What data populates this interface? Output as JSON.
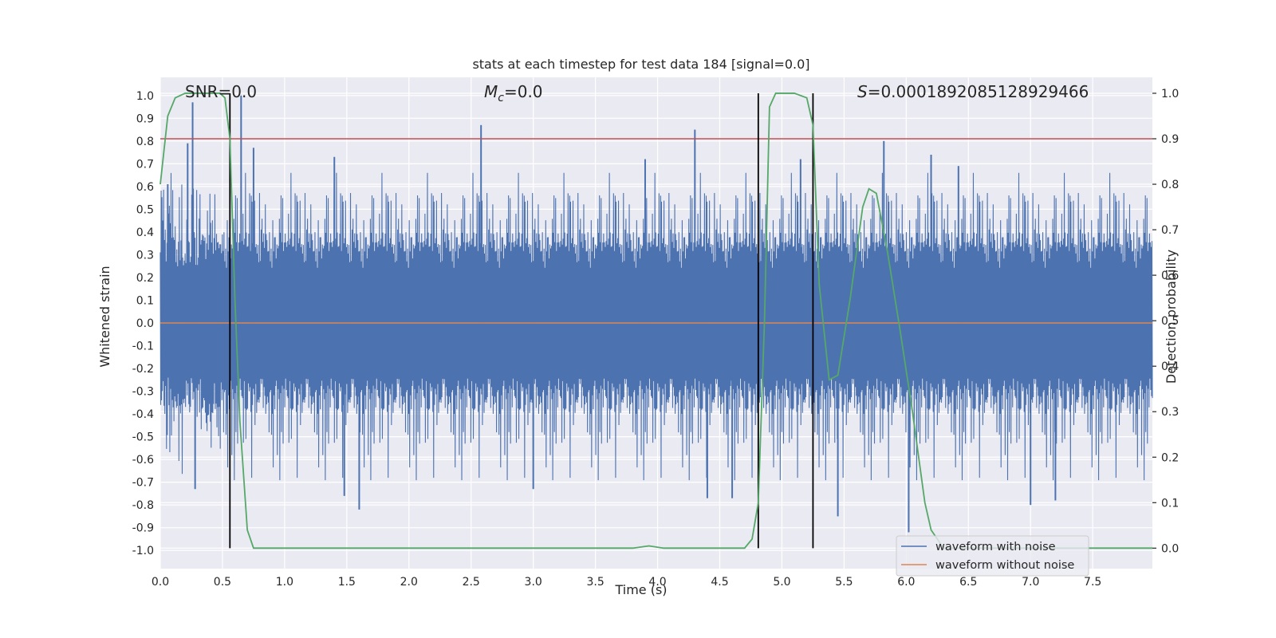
{
  "chart_data": {
    "type": "line",
    "title": "stats at each timestep for test data 184 [signal=0.0]",
    "xlabel": "Time (s)",
    "ylabel": "Whitened strain",
    "y2label": "Detection probability",
    "xlim": [
      0.0,
      7.98
    ],
    "ylim": [
      -1.08,
      1.08
    ],
    "y2lim": [
      -0.045,
      1.035
    ],
    "x_ticks": [
      0.0,
      0.5,
      1.0,
      1.5,
      2.0,
      2.5,
      3.0,
      3.5,
      4.0,
      4.5,
      5.0,
      5.5,
      6.0,
      6.5,
      7.0,
      7.5
    ],
    "x_tick_labels": [
      "0.0",
      "0.5",
      "1.0",
      "1.5",
      "2.0",
      "2.5",
      "3.0",
      "3.5",
      "4.0",
      "4.5",
      "5.0",
      "5.5",
      "6.0",
      "6.5",
      "7.0",
      "7.5"
    ],
    "y_ticks": [
      1.0,
      0.9,
      0.8,
      0.7,
      0.6,
      0.5,
      0.4,
      0.3,
      0.2,
      0.1,
      0.0,
      -0.1,
      -0.2,
      -0.3,
      -0.4,
      -0.5,
      -0.6,
      -0.7,
      -0.8,
      -0.9,
      -1.0
    ],
    "y_tick_labels": [
      "1.0",
      "0.9",
      "0.8",
      "0.7",
      "0.6",
      "0.5",
      "0.4",
      "0.3",
      "0.2",
      "0.1",
      "0.0",
      "-0.1",
      "-0.2",
      "-0.3",
      "-0.4",
      "-0.5",
      "-0.6",
      "-0.7",
      "-0.8",
      "-0.9",
      "-1.0"
    ],
    "y2_ticks": [
      1.0,
      0.9,
      0.8,
      0.7,
      0.6,
      0.5,
      0.4,
      0.3,
      0.2,
      0.1,
      0.0
    ],
    "y2_tick_labels": [
      "1.0",
      "0.9",
      "0.8",
      "0.7",
      "0.6",
      "0.5",
      "0.4",
      "0.3",
      "0.2",
      "0.1",
      "0.0"
    ],
    "annotations": {
      "snr": "SNR=0.0",
      "mc_symbol": "M",
      "mc_sub": "c",
      "mc_value": "=0.0",
      "s_symbol": "S",
      "s_value": "=0.0001892085128929466"
    },
    "threshold": {
      "y2": 0.9,
      "color": "#c44e52"
    },
    "vertical_markers_s": [
      0.56,
      4.81,
      5.25
    ],
    "noisy_waveform": {
      "name": "waveform with noise",
      "color": "#4c72b0",
      "t_start": 0.0,
      "t_end": 7.98,
      "core_envelope": 0.4,
      "typical_peak": 0.6,
      "spikes": [
        {
          "t": 0.06,
          "v": 0.61
        },
        {
          "t": 0.26,
          "v": 0.97
        },
        {
          "t": 0.22,
          "v": 0.79
        },
        {
          "t": 0.65,
          "v": 1.0
        },
        {
          "t": 0.75,
          "v": 0.77
        },
        {
          "t": 1.4,
          "v": 0.73
        },
        {
          "t": 2.58,
          "v": 0.87
        },
        {
          "t": 3.9,
          "v": 0.72
        },
        {
          "t": 4.3,
          "v": 0.85
        },
        {
          "t": 5.15,
          "v": 0.72
        },
        {
          "t": 5.82,
          "v": 0.8
        },
        {
          "t": 6.2,
          "v": 0.74
        },
        {
          "t": 6.42,
          "v": 0.69
        },
        {
          "t": 0.28,
          "v": -0.73
        },
        {
          "t": 1.6,
          "v": -0.82
        },
        {
          "t": 1.48,
          "v": -0.76
        },
        {
          "t": 3.0,
          "v": -0.73
        },
        {
          "t": 4.4,
          "v": -0.77
        },
        {
          "t": 4.6,
          "v": -0.77
        },
        {
          "t": 5.45,
          "v": -0.85
        },
        {
          "t": 6.02,
          "v": -0.92
        },
        {
          "t": 7.0,
          "v": -0.8
        },
        {
          "t": 7.2,
          "v": -0.78
        }
      ]
    },
    "clean_waveform": {
      "name": "waveform without noise",
      "color": "#dd8452",
      "value": 0.0
    },
    "detection_probability": {
      "name": "detection probability",
      "color": "#55a868",
      "t": [
        0.0,
        0.06,
        0.12,
        0.2,
        0.3,
        0.4,
        0.48,
        0.52,
        0.56,
        0.6,
        0.64,
        0.7,
        0.75,
        0.8,
        1.0,
        2.0,
        3.0,
        3.8,
        3.93,
        4.05,
        4.5,
        4.7,
        4.76,
        4.81,
        4.86,
        4.9,
        4.95,
        5.1,
        5.2,
        5.25,
        5.3,
        5.38,
        5.45,
        5.55,
        5.65,
        5.7,
        5.76,
        5.85,
        5.95,
        6.05,
        6.15,
        6.2,
        6.3,
        7.0,
        7.98
      ],
      "p": [
        0.8,
        0.95,
        0.99,
        1.0,
        1.0,
        1.0,
        1.0,
        0.99,
        0.9,
        0.55,
        0.28,
        0.04,
        0.0,
        0.0,
        0.0,
        0.0,
        0.0,
        0.0,
        0.005,
        0.0,
        0.0,
        0.0,
        0.02,
        0.1,
        0.5,
        0.97,
        1.0,
        1.0,
        0.99,
        0.93,
        0.58,
        0.37,
        0.38,
        0.55,
        0.75,
        0.79,
        0.78,
        0.65,
        0.48,
        0.3,
        0.1,
        0.04,
        0.0,
        0.0,
        0.0
      ]
    },
    "legend": {
      "position": "lower-right",
      "items": [
        {
          "label": "waveform with noise",
          "color": "#4c72b0"
        },
        {
          "label": "waveform without noise",
          "color": "#dd8452"
        }
      ]
    },
    "grid": true
  }
}
